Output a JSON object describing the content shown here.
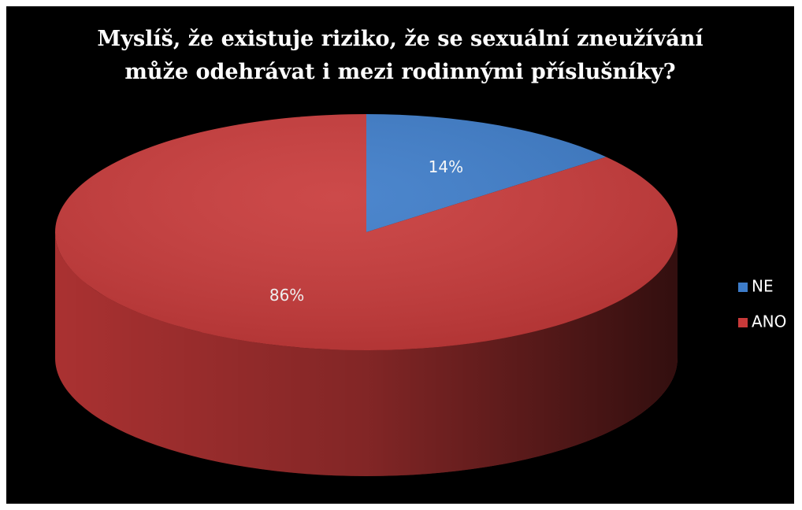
{
  "chart_data": {
    "type": "pie",
    "title": [
      "Myslíš, že existuje riziko, že se sexuální zneužívání",
      "může odehrávat i mezi rodinnými příslušníky?"
    ],
    "categories": [
      "NE",
      "ANO"
    ],
    "values": [
      14,
      86
    ],
    "value_labels": [
      "14%",
      "86%"
    ],
    "colors": [
      "#3d7cc9",
      "#c83a3a"
    ],
    "legend": "right"
  }
}
